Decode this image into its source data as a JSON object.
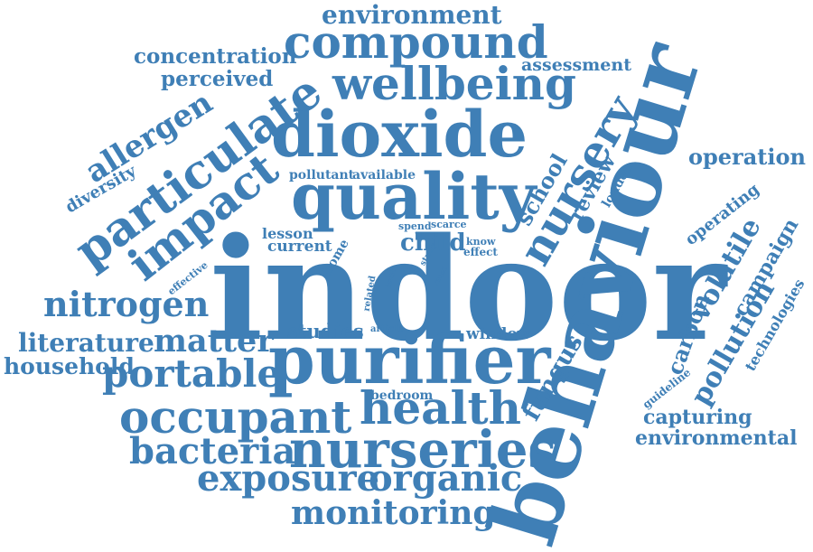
{
  "cloud": {
    "color": "#3f7fb6",
    "words": [
      "indoor",
      "behaviour",
      "purifier",
      "quality",
      "dioxide",
      "particulate",
      "nurseries",
      "compound",
      "wellbeing",
      "occupant",
      "health",
      "impact",
      "nursery",
      "bacteria",
      "exposure",
      "organic",
      "monitoring",
      "environment",
      "concentration",
      "perceived",
      "assessment",
      "allergen",
      "diversity",
      "nitrogen",
      "literature",
      "matter",
      "household",
      "portable",
      "fungus",
      "studies",
      "article",
      "window",
      "bedroom",
      "pollutant",
      "available",
      "lesson",
      "current",
      "home",
      "spend",
      "scarce",
      "child",
      "know",
      "effect",
      "study",
      "level",
      "time",
      "most",
      "related",
      "effective",
      "school",
      "review",
      "london",
      "operation",
      "operating",
      "volatile",
      "campaign",
      "technologies",
      "carbon",
      "pollution",
      "guideline",
      "capturing",
      "environmental"
    ]
  }
}
